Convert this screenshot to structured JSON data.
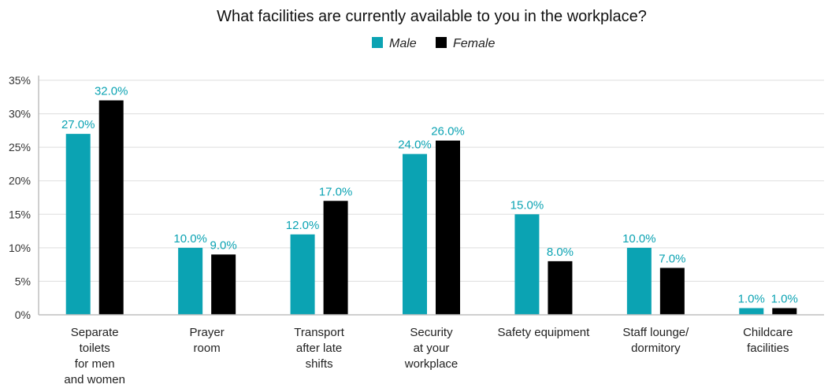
{
  "chart_data": {
    "type": "bar",
    "title": "What facilities are currently available to you in the workplace?",
    "categories": [
      [
        "Separate",
        "toilets",
        "for men",
        "and women"
      ],
      [
        "Prayer",
        "room"
      ],
      [
        "Transport",
        "after late",
        "shifts"
      ],
      [
        "Security",
        "at your",
        "workplace"
      ],
      [
        "Safety equipment"
      ],
      [
        "Staff lounge/",
        "dormitory"
      ],
      [
        "Childcare",
        "facilities"
      ]
    ],
    "series": [
      {
        "name": "Male",
        "color": "#0ba3b3",
        "values": [
          27.0,
          10.0,
          12.0,
          24.0,
          15.0,
          10.0,
          1.0
        ],
        "labels": [
          "27.0%",
          "10.0%",
          "12.0%",
          "24.0%",
          "15.0%",
          "10.0%",
          "1.0%"
        ]
      },
      {
        "name": "Female",
        "color": "#000000",
        "values": [
          32.0,
          9.0,
          17.0,
          26.0,
          8.0,
          7.0,
          1.0
        ],
        "labels": [
          "32.0%",
          "9.0%",
          "17.0%",
          "26.0%",
          "8.0%",
          "7.0%",
          "1.0%"
        ]
      }
    ],
    "ylim": [
      0,
      35
    ],
    "yticks": [
      "0%",
      "5%",
      "10%",
      "15%",
      "20%",
      "25%",
      "30%",
      "35%"
    ],
    "grid": true,
    "legend_position": "top-center",
    "label_colors": {
      "Male": "#0ba3b3",
      "Female": "#0ba3b3"
    }
  }
}
